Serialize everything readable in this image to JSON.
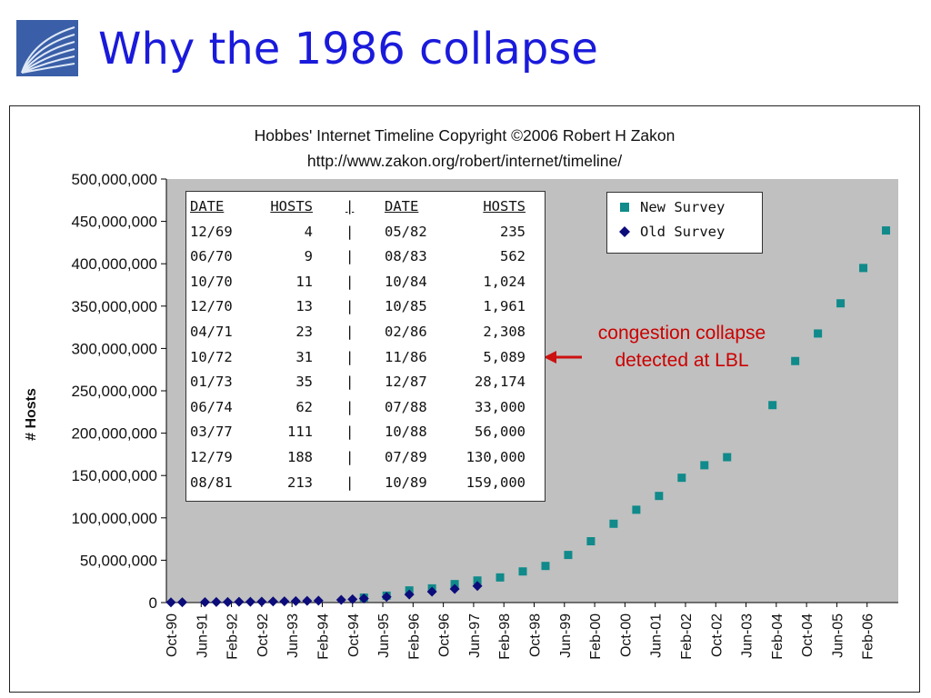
{
  "slide": {
    "title": "Why the 1986 collapse"
  },
  "chart_data": {
    "type": "scatter",
    "title": "Hobbes' Internet Timeline Copyright ©2006 Robert H Zakon",
    "subtitle": "http://www.zakon.org/robert/internet/timeline/",
    "ylabel": "# Hosts",
    "xlabel": "",
    "ylim": [
      0,
      500000000
    ],
    "yticks": [
      "0",
      "50,000,000",
      "100,000,000",
      "150,000,000",
      "200,000,000",
      "250,000,000",
      "300,000,000",
      "350,000,000",
      "400,000,000",
      "450,000,000",
      "500,000,000"
    ],
    "xticks": [
      "Oct-90",
      "Jun-91",
      "Feb-92",
      "Oct-92",
      "Jun-93",
      "Feb-94",
      "Oct-94",
      "Jun-95",
      "Feb-96",
      "Oct-96",
      "Jun-97",
      "Feb-98",
      "Oct-98",
      "Jun-99",
      "Feb-00",
      "Oct-00",
      "Jun-01",
      "Feb-02",
      "Oct-02",
      "Jun-03",
      "Feb-04",
      "Oct-04",
      "Jun-05",
      "Feb-06"
    ],
    "grid": false,
    "legend_position": "top-right",
    "colors": {
      "plot_bg": "#c0c0c0",
      "new_survey": "#108a8a",
      "old_survey": "#0c0c7a"
    },
    "series": [
      {
        "name": "New Survey",
        "marker": "square",
        "points": [
          {
            "x": "1995-01",
            "y": 5846000
          },
          {
            "x": "1995-07",
            "y": 8200000
          },
          {
            "x": "1996-01",
            "y": 14352000
          },
          {
            "x": "1996-07",
            "y": 16729000
          },
          {
            "x": "1997-01",
            "y": 21819000
          },
          {
            "x": "1997-07",
            "y": 26053000
          },
          {
            "x": "1998-01",
            "y": 29670000
          },
          {
            "x": "1998-07",
            "y": 36739000
          },
          {
            "x": "1999-01",
            "y": 43230000
          },
          {
            "x": "1999-07",
            "y": 56218000
          },
          {
            "x": "2000-01",
            "y": 72398000
          },
          {
            "x": "2000-07",
            "y": 93047000
          },
          {
            "x": "2001-01",
            "y": 109574000
          },
          {
            "x": "2001-07",
            "y": 125888000
          },
          {
            "x": "2002-01",
            "y": 147345000
          },
          {
            "x": "2002-07",
            "y": 162128000
          },
          {
            "x": "2003-01",
            "y": 171638000
          },
          {
            "x": "2004-01",
            "y": 233101000
          },
          {
            "x": "2004-07",
            "y": 285139000
          },
          {
            "x": "2005-01",
            "y": 317646000
          },
          {
            "x": "2005-07",
            "y": 353284000
          },
          {
            "x": "2006-01",
            "y": 394991000
          },
          {
            "x": "2006-07",
            "y": 439286000
          }
        ]
      },
      {
        "name": "Old Survey",
        "marker": "diamond",
        "points": [
          {
            "x": "1990-10",
            "y": 313000
          },
          {
            "x": "1991-01",
            "y": 376000
          },
          {
            "x": "1991-07",
            "y": 535000
          },
          {
            "x": "1991-10",
            "y": 617000
          },
          {
            "x": "1992-01",
            "y": 727000
          },
          {
            "x": "1992-04",
            "y": 890000
          },
          {
            "x": "1992-07",
            "y": 992000
          },
          {
            "x": "1992-10",
            "y": 1136000
          },
          {
            "x": "1993-01",
            "y": 1313000
          },
          {
            "x": "1993-04",
            "y": 1486000
          },
          {
            "x": "1993-07",
            "y": 1776000
          },
          {
            "x": "1993-10",
            "y": 2056000
          },
          {
            "x": "1994-01",
            "y": 2217000
          },
          {
            "x": "1994-07",
            "y": 3212000
          },
          {
            "x": "1994-10",
            "y": 3864000
          },
          {
            "x": "1995-01",
            "y": 4852000
          },
          {
            "x": "1995-07",
            "y": 6642000
          },
          {
            "x": "1996-01",
            "y": 9472000
          },
          {
            "x": "1996-07",
            "y": 12881000
          },
          {
            "x": "1997-01",
            "y": 16146000
          },
          {
            "x": "1997-07",
            "y": 19540000
          }
        ]
      }
    ],
    "table": {
      "headers": [
        "DATE",
        "HOSTS",
        "DATE",
        "HOSTS"
      ],
      "separator": "|",
      "rows": [
        [
          "12/69",
          "4",
          "05/82",
          "235"
        ],
        [
          "06/70",
          "9",
          "08/83",
          "562"
        ],
        [
          "10/70",
          "11",
          "10/84",
          "1,024"
        ],
        [
          "12/70",
          "13",
          "10/85",
          "1,961"
        ],
        [
          "04/71",
          "23",
          "02/86",
          "2,308"
        ],
        [
          "10/72",
          "31",
          "11/86",
          "5,089"
        ],
        [
          "01/73",
          "35",
          "12/87",
          "28,174"
        ],
        [
          "06/74",
          "62",
          "07/88",
          "33,000"
        ],
        [
          "03/77",
          "111",
          "10/88",
          "56,000"
        ],
        [
          "12/79",
          "188",
          "07/89",
          "130,000"
        ],
        [
          "08/81",
          "213",
          "10/89",
          "159,000"
        ]
      ],
      "highlighted_row": 5
    },
    "annotation": {
      "text_line1": "congestion collapse",
      "text_line2": "detected at LBL",
      "color": "#cc0000"
    }
  }
}
